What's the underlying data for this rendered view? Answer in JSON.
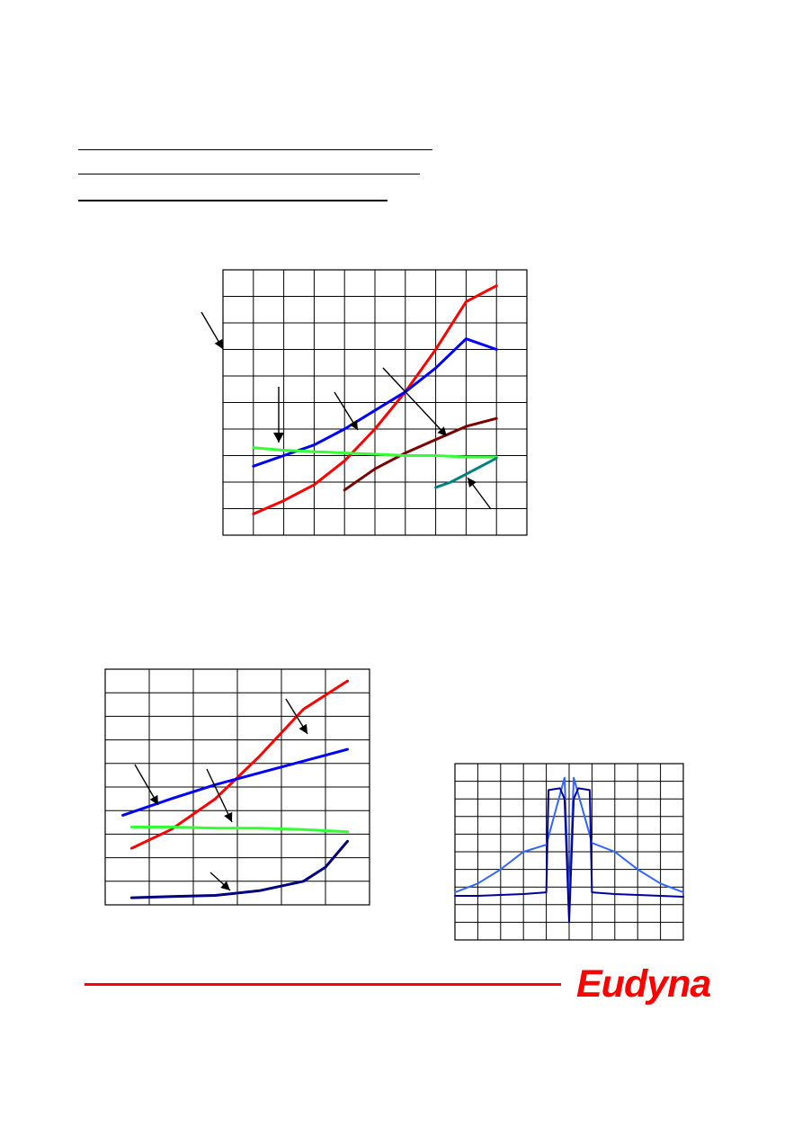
{
  "brand": {
    "logo_text": "Eudyna",
    "accent_color": "#ff0000"
  },
  "chart_data": [
    {
      "type": "line",
      "grid": true,
      "grid_divisions": {
        "x": 10,
        "y": 10
      },
      "xlim": [
        0,
        10
      ],
      "ylim": [
        0,
        10
      ],
      "series": [
        {
          "color": "#ff0000",
          "points": [
            [
              1,
              0.8
            ],
            [
              2,
              1.3
            ],
            [
              3,
              1.9
            ],
            [
              4,
              2.8
            ],
            [
              5,
              4.0
            ],
            [
              6,
              5.4
            ],
            [
              7,
              7.0
            ],
            [
              8,
              8.8
            ],
            [
              9,
              9.4
            ]
          ]
        },
        {
          "color": "#0000ff",
          "points": [
            [
              1,
              2.6
            ],
            [
              2,
              3.0
            ],
            [
              3,
              3.4
            ],
            [
              4,
              4.0
            ],
            [
              5,
              4.7
            ],
            [
              6,
              5.4
            ],
            [
              7,
              6.3
            ],
            [
              8,
              7.4
            ],
            [
              9,
              7.0
            ]
          ]
        },
        {
          "color": "#7b0000",
          "points": [
            [
              4,
              1.7
            ],
            [
              5,
              2.5
            ],
            [
              6,
              3.1
            ],
            [
              7,
              3.6
            ],
            [
              8,
              4.1
            ],
            [
              9,
              4.4
            ]
          ]
        },
        {
          "color": "#33ff33",
          "points": [
            [
              1,
              3.3
            ],
            [
              2,
              3.2
            ],
            [
              3,
              3.15
            ],
            [
              4,
              3.1
            ],
            [
              5,
              3.05
            ],
            [
              6,
              3.0
            ],
            [
              7,
              3.0
            ],
            [
              8,
              2.95
            ],
            [
              9,
              2.95
            ]
          ]
        },
        {
          "color": "#008080",
          "points": [
            [
              7,
              1.8
            ],
            [
              7.5,
              2.0
            ],
            [
              8,
              2.3
            ],
            [
              8.5,
              2.6
            ],
            [
              9,
              2.9
            ]
          ]
        }
      ]
    },
    {
      "type": "line",
      "grid": true,
      "grid_divisions": {
        "x": 6,
        "y": 10
      },
      "xlim": [
        0,
        6
      ],
      "ylim": [
        0,
        10
      ],
      "series": [
        {
          "color": "#ff0000",
          "points": [
            [
              0.6,
              2.4
            ],
            [
              1.5,
              3.2
            ],
            [
              2.5,
              4.5
            ],
            [
              3.5,
              6.3
            ],
            [
              4.5,
              8.3
            ],
            [
              5.5,
              9.5
            ]
          ]
        },
        {
          "color": "#0000ff",
          "points": [
            [
              0.4,
              3.8
            ],
            [
              1.5,
              4.5
            ],
            [
              2.5,
              5.1
            ],
            [
              3.5,
              5.6
            ],
            [
              4.5,
              6.1
            ],
            [
              5.5,
              6.6
            ]
          ]
        },
        {
          "color": "#33ff33",
          "points": [
            [
              0.6,
              3.3
            ],
            [
              1.5,
              3.3
            ],
            [
              2.5,
              3.25
            ],
            [
              3.5,
              3.25
            ],
            [
              4.5,
              3.2
            ],
            [
              5.5,
              3.1
            ]
          ]
        },
        {
          "color": "#000080",
          "points": [
            [
              0.6,
              0.3
            ],
            [
              1.5,
              0.35
            ],
            [
              2.5,
              0.4
            ],
            [
              3.5,
              0.6
            ],
            [
              4.5,
              1.0
            ],
            [
              5.0,
              1.6
            ],
            [
              5.5,
              2.7
            ]
          ]
        }
      ]
    },
    {
      "type": "line",
      "grid": true,
      "grid_divisions": {
        "x": 10,
        "y": 10
      },
      "xlim": [
        0,
        10
      ],
      "ylim": [
        0,
        10
      ],
      "series": [
        {
          "color": "#3366ff",
          "points": [
            [
              0,
              2.7
            ],
            [
              1,
              3.2
            ],
            [
              2,
              4.0
            ],
            [
              3,
              5.0
            ],
            [
              4,
              5.4
            ],
            [
              4.8,
              9.2
            ],
            [
              5.0,
              2.0
            ],
            [
              5.2,
              9.2
            ],
            [
              6,
              5.5
            ],
            [
              7,
              5.0
            ],
            [
              8,
              4.0
            ],
            [
              9,
              3.2
            ],
            [
              10,
              2.7
            ]
          ]
        },
        {
          "color": "#000099",
          "points": [
            [
              0,
              2.5
            ],
            [
              1,
              2.5
            ],
            [
              2,
              2.55
            ],
            [
              3,
              2.6
            ],
            [
              4,
              2.7
            ],
            [
              4.1,
              8.5
            ],
            [
              4.6,
              8.6
            ],
            [
              4.8,
              8.0
            ],
            [
              5.0,
              1.0
            ],
            [
              5.2,
              8.0
            ],
            [
              5.4,
              8.6
            ],
            [
              5.9,
              8.5
            ],
            [
              6,
              2.7
            ],
            [
              7,
              2.6
            ],
            [
              8,
              2.55
            ],
            [
              9,
              2.5
            ],
            [
              10,
              2.45
            ]
          ]
        }
      ]
    }
  ]
}
